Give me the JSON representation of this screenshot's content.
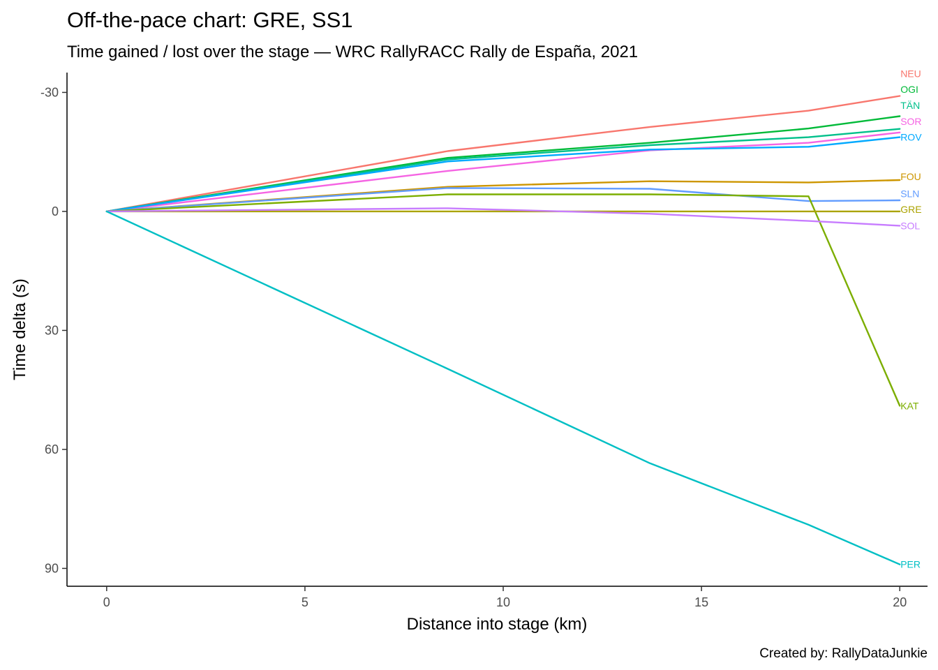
{
  "chart_data": {
    "type": "line",
    "title": "Off-the-pace chart: GRE, SS1",
    "subtitle": "Time gained / lost over the stage — WRC RallyRACC Rally de España, 2021",
    "xlabel": "Distance into stage (km)",
    "ylabel": "Time delta (s)",
    "caption": "Created by: RallyDataJunkie",
    "xlim": [
      -1,
      20.7
    ],
    "ylim": [
      -35,
      94.5
    ],
    "y_reversed": true,
    "x_ticks": [
      0,
      5,
      10,
      15,
      20
    ],
    "y_ticks": [
      -30,
      0,
      30,
      60,
      90
    ],
    "x_tick_labels": [
      "0",
      "5",
      "10",
      "15",
      "20"
    ],
    "y_tick_labels": [
      "-30",
      "0",
      "30",
      "60",
      "90"
    ],
    "grid": false,
    "legend": "none",
    "x": [
      0,
      8.6,
      13.7,
      17.7,
      20
    ],
    "series": [
      {
        "name": "NEU",
        "color": "#F8766D",
        "values": [
          0,
          -15.2,
          -21.3,
          -25.4,
          -29.1
        ]
      },
      {
        "name": "OGI",
        "color": "#00BA38",
        "values": [
          0,
          -13.5,
          -17.3,
          -20.9,
          -24.0
        ]
      },
      {
        "name": "TÄN",
        "color": "#00C08B",
        "values": [
          0,
          -13.1,
          -16.7,
          -18.7,
          -20.8
        ]
      },
      {
        "name": "SOR",
        "color": "#F564E3",
        "values": [
          0,
          -10.2,
          -15.4,
          -17.3,
          -19.9
        ]
      },
      {
        "name": "ROV",
        "color": "#00A9FF",
        "values": [
          0,
          -12.6,
          -15.6,
          -16.3,
          -18.7
        ]
      },
      {
        "name": "FOU",
        "color": "#CD9600",
        "values": [
          0,
          -6.2,
          -7.6,
          -7.3,
          -7.9
        ]
      },
      {
        "name": "SLN",
        "color": "#619CFF",
        "values": [
          0,
          -5.9,
          -5.7,
          -2.6,
          -2.8
        ]
      },
      {
        "name": "KAT",
        "color": "#7CAE00",
        "values": [
          0,
          -4.3,
          -4.3,
          -3.8,
          49.0
        ]
      },
      {
        "name": "GRE",
        "color": "#ABA300",
        "values": [
          0,
          0,
          0,
          0,
          0
        ]
      },
      {
        "name": "SOL",
        "color": "#C77CFF",
        "values": [
          0,
          -0.8,
          0.6,
          2.4,
          3.6
        ]
      },
      {
        "name": "PER",
        "color": "#00BFC4",
        "values": [
          0,
          39.7,
          63.5,
          79.0,
          89.0
        ]
      }
    ],
    "end_labels": [
      {
        "text": "NEU",
        "y": -34.7
      },
      {
        "text": "OGI",
        "y": -30.8
      },
      {
        "text": "TÄN",
        "y": -26.7
      },
      {
        "text": "SOR",
        "y": -22.7
      },
      {
        "text": "ROV",
        "y": -18.7
      },
      {
        "text": "FOU",
        "y": -8.8
      },
      {
        "text": "SLN",
        "y": -4.5
      },
      {
        "text": "GRE",
        "y": -0.5
      },
      {
        "text": "SOL",
        "y": 3.6
      },
      {
        "text": "KAT",
        "y": 49.0
      },
      {
        "text": "PER",
        "y": 89.0
      }
    ]
  }
}
